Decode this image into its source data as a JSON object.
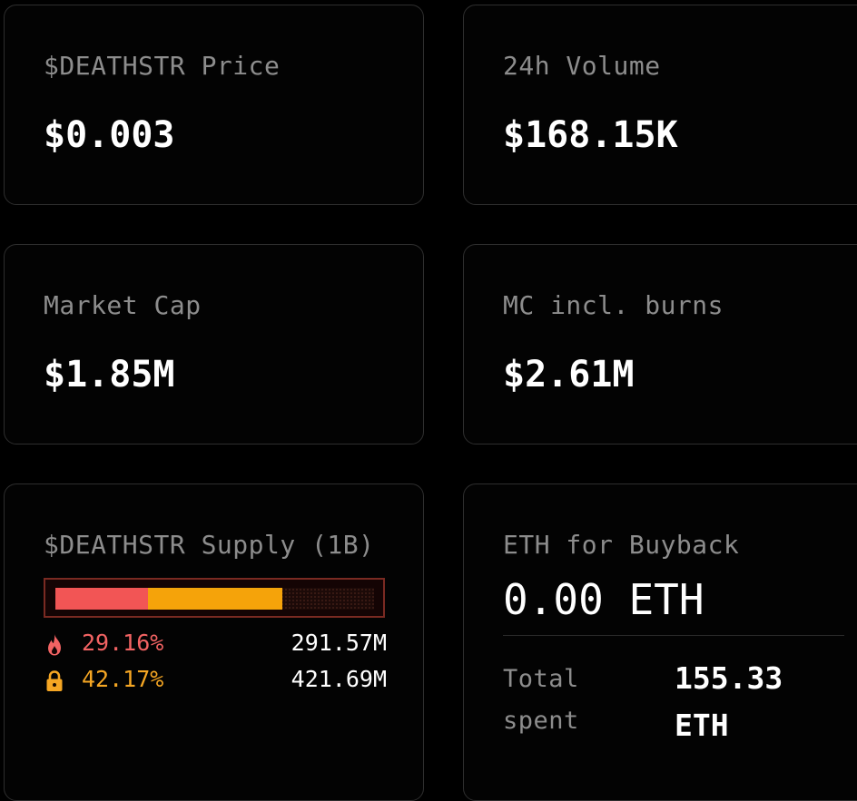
{
  "cards": {
    "price": {
      "label": "$DEATHSTR Price",
      "value": "$0.003"
    },
    "volume": {
      "label": "24h Volume",
      "value": "$168.15K"
    },
    "market_cap": {
      "label": "Market Cap",
      "value": "$1.85M"
    },
    "mc_burns": {
      "label": "MC incl. burns",
      "value": "$2.61M"
    }
  },
  "supply": {
    "label": "$DEATHSTR Supply (1B)",
    "burned": {
      "icon": "flame-icon",
      "percent": "29.16%",
      "amount": "291.57M",
      "fraction": 0.2916,
      "color": "#f25555"
    },
    "locked": {
      "icon": "lock-icon",
      "percent": "42.17%",
      "amount": "421.69M",
      "fraction": 0.4217,
      "color": "#f5a30a"
    }
  },
  "buyback": {
    "label": "ETH for Buyback",
    "value": "0.00 ETH",
    "total_spent_label": "Total spent",
    "total_spent_value": "155.33 ETH"
  }
}
